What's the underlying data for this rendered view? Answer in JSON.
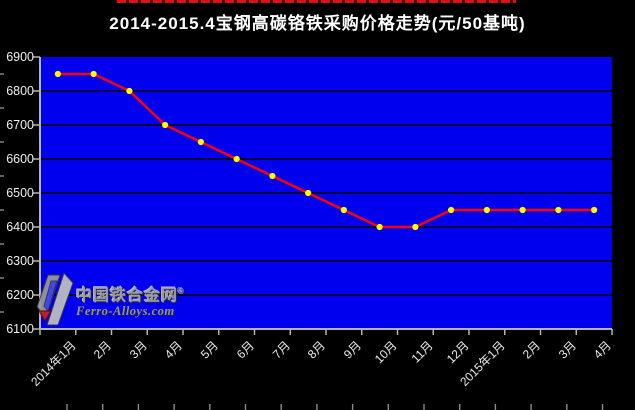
{
  "title": {
    "text": "2014-2015.4宝钢高碳铬铁采购价格走势(元/50基吨)"
  },
  "watermark": {
    "cn": "中国铁合金网",
    "reg": "®",
    "en": "Ferro-Alloys.com"
  },
  "colors": {
    "background": "#000000",
    "plot_bg": "#0000ee",
    "grid": "#000000",
    "axis": "#b5b5b5",
    "outer_tick": "#8a8a8a",
    "line": "#ff0000",
    "marker": "#ffff00",
    "title_text": "#ffffff",
    "tick_text": "#f0f0f0",
    "top_rule": "#dd1111",
    "watermark_gray": "#a8a8a8",
    "watermark_red": "#cf2020"
  },
  "chart_data": {
    "type": "line",
    "title": "2014-2015.4宝钢高碳铬铁采购价格走势(元/50基吨)",
    "categories": [
      "2014年1月",
      "2月",
      "3月",
      "4月",
      "5月",
      "6月",
      "7月",
      "8月",
      "9月",
      "10月",
      "11月",
      "12月",
      "2015年1月",
      "2月",
      "3月",
      "4月"
    ],
    "values": [
      6850,
      6850,
      6800,
      6700,
      6650,
      6600,
      6550,
      6500,
      6450,
      6400,
      6400,
      6450,
      6450,
      6450,
      6450,
      6450
    ],
    "xlabel": "",
    "ylabel": "",
    "ylim": [
      6100,
      6900
    ],
    "ytick_step": 100,
    "ytick_labels": [
      "6900",
      "6800",
      "6700",
      "6600",
      "6500",
      "6400",
      "6300",
      "6200",
      "6100"
    ],
    "grid": "horizontal-black",
    "legend": "none",
    "marker": "dot",
    "plot_area_color": "#0000ee",
    "line_color": "#ff0000",
    "marker_color": "#ffff00"
  }
}
